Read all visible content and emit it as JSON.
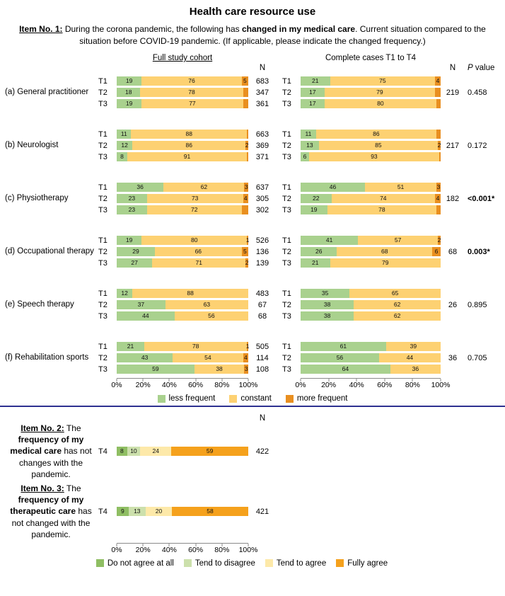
{
  "title": "Health care resource use",
  "item1": {
    "text": [
      {
        "t": "Item No. 1:",
        "b": true,
        "u": true
      },
      {
        "t": " During the corona pandemic, the following has ",
        "b": false,
        "u": false
      },
      {
        "t": "changed in my medical care",
        "b": true,
        "u": false
      },
      {
        "t": ". Current situation compared to the situation before COVID-19 pandemic. (If applicable, please indicate the changed frequency.)",
        "b": false,
        "u": false
      }
    ]
  },
  "headers": {
    "full": "Full study cohort",
    "complete": "Complete cases T1 to T4",
    "n": "N",
    "p_italic": "P",
    "p_rest": " value"
  },
  "chart_data": [
    {
      "type": "bar",
      "stacked": true,
      "orientation": "horizontal",
      "title": "Item No. 1 - change in medical care",
      "unit": "%",
      "xlim": [
        0,
        100
      ],
      "x_ticks": [
        "0%",
        "20%",
        "40%",
        "60%",
        "80%",
        "100%"
      ],
      "legend": [
        "less frequent",
        "constant",
        "more frequent"
      ],
      "legend_position": "bottom",
      "colors": [
        "#a9d18e",
        "#fdd172",
        "#e98f20"
      ],
      "panels": [
        "Full study cohort",
        "Complete cases T1 to T4"
      ],
      "groups": [
        {
          "label": "(a) General practitioner",
          "complete_n": "219",
          "p_value": "0.458",
          "p_bold": false,
          "rows": [
            {
              "t": "T1",
              "full_values": [
                19,
                76,
                5
              ],
              "full_labels": [
                "19",
                "76",
                "5"
              ],
              "full_n": "683",
              "comp_values": [
                21,
                75,
                4
              ],
              "comp_labels": [
                "21",
                "75",
                "4"
              ]
            },
            {
              "t": "T2",
              "full_values": [
                18,
                78,
                4
              ],
              "full_labels": [
                "18",
                "78",
                ""
              ],
              "full_n": "347",
              "comp_values": [
                17,
                79,
                4
              ],
              "comp_labels": [
                "17",
                "79",
                ""
              ]
            },
            {
              "t": "T3",
              "full_values": [
                19,
                77,
                4
              ],
              "full_labels": [
                "19",
                "77",
                ""
              ],
              "full_n": "361",
              "comp_values": [
                17,
                80,
                3
              ],
              "comp_labels": [
                "17",
                "80",
                ""
              ]
            }
          ]
        },
        {
          "label": "(b) Neurologist",
          "complete_n": "217",
          "p_value": "0.172",
          "p_bold": false,
          "rows": [
            {
              "t": "T1",
              "full_values": [
                11,
                88,
                1
              ],
              "full_labels": [
                "11",
                "88",
                ""
              ],
              "full_n": "663",
              "comp_values": [
                11,
                86,
                3
              ],
              "comp_labels": [
                "11",
                "86",
                ""
              ]
            },
            {
              "t": "T2",
              "full_values": [
                12,
                86,
                2
              ],
              "full_labels": [
                "12",
                "86",
                "2"
              ],
              "full_n": "369",
              "comp_values": [
                13,
                85,
                2
              ],
              "comp_labels": [
                "13",
                "85",
                "2"
              ]
            },
            {
              "t": "T3",
              "full_values": [
                8,
                91,
                1
              ],
              "full_labels": [
                "8",
                "91",
                ""
              ],
              "full_n": "371",
              "comp_values": [
                6,
                93,
                1
              ],
              "comp_labels": [
                "6",
                "93",
                ""
              ]
            }
          ]
        },
        {
          "label": "(c) Physiotherapy",
          "complete_n": "182",
          "p_value": "<0.001*",
          "p_bold": true,
          "rows": [
            {
              "t": "T1",
              "full_values": [
                36,
                62,
                3
              ],
              "full_labels": [
                "36",
                "62",
                "3"
              ],
              "full_n": "637",
              "comp_values": [
                46,
                51,
                3
              ],
              "comp_labels": [
                "46",
                "51",
                "3"
              ]
            },
            {
              "t": "T2",
              "full_values": [
                23,
                73,
                4
              ],
              "full_labels": [
                "23",
                "73",
                "4"
              ],
              "full_n": "305",
              "comp_values": [
                22,
                74,
                4
              ],
              "comp_labels": [
                "22",
                "74",
                "4"
              ]
            },
            {
              "t": "T3",
              "full_values": [
                23,
                72,
                5
              ],
              "full_labels": [
                "23",
                "72",
                ""
              ],
              "full_n": "302",
              "comp_values": [
                19,
                78,
                3
              ],
              "comp_labels": [
                "19",
                "78",
                ""
              ]
            }
          ]
        },
        {
          "label": "(d) Occupational therapy",
          "complete_n": "68",
          "p_value": "0.003*",
          "p_bold": true,
          "rows": [
            {
              "t": "T1",
              "full_values": [
                19,
                80,
                1
              ],
              "full_labels": [
                "19",
                "80",
                "1"
              ],
              "full_n": "526",
              "comp_values": [
                41,
                57,
                2
              ],
              "comp_labels": [
                "41",
                "57",
                "2"
              ]
            },
            {
              "t": "T2",
              "full_values": [
                29,
                66,
                5
              ],
              "full_labels": [
                "29",
                "66",
                "5"
              ],
              "full_n": "136",
              "comp_values": [
                26,
                68,
                6
              ],
              "comp_labels": [
                "26",
                "68",
                "6"
              ]
            },
            {
              "t": "T3",
              "full_values": [
                27,
                71,
                2
              ],
              "full_labels": [
                "27",
                "71",
                "2"
              ],
              "full_n": "139",
              "comp_values": [
                21,
                79
              ],
              "comp_labels": [
                "21",
                "79"
              ]
            }
          ]
        },
        {
          "label": "(e) Speech therapy",
          "complete_n": "26",
          "p_value": "0.895",
          "p_bold": false,
          "rows": [
            {
              "t": "T1",
              "full_values": [
                12,
                88
              ],
              "full_labels": [
                "12",
                "88"
              ],
              "full_n": "483",
              "comp_values": [
                35,
                65
              ],
              "comp_labels": [
                "35",
                "65"
              ]
            },
            {
              "t": "T2",
              "full_values": [
                37,
                63
              ],
              "full_labels": [
                "37",
                "63"
              ],
              "full_n": "67",
              "comp_values": [
                38,
                62
              ],
              "comp_labels": [
                "38",
                "62"
              ]
            },
            {
              "t": "T3",
              "full_values": [
                44,
                56
              ],
              "full_labels": [
                "44",
                "56"
              ],
              "full_n": "68",
              "comp_values": [
                38,
                62
              ],
              "comp_labels": [
                "38",
                "62"
              ]
            }
          ]
        },
        {
          "label": "(f) Rehabilitation sports",
          "complete_n": "36",
          "p_value": "0.705",
          "p_bold": false,
          "rows": [
            {
              "t": "T1",
              "full_values": [
                21,
                78,
                1
              ],
              "full_labels": [
                "21",
                "78",
                "1"
              ],
              "full_n": "505",
              "comp_values": [
                61,
                39
              ],
              "comp_labels": [
                "61",
                "39"
              ]
            },
            {
              "t": "T2",
              "full_values": [
                43,
                54,
                4
              ],
              "full_labels": [
                "43",
                "54",
                "4"
              ],
              "full_n": "114",
              "comp_values": [
                56,
                44
              ],
              "comp_labels": [
                "56",
                "44"
              ]
            },
            {
              "t": "T3",
              "full_values": [
                59,
                38,
                3
              ],
              "full_labels": [
                "59",
                "38",
                "3"
              ],
              "full_n": "108",
              "comp_values": [
                64,
                36
              ],
              "comp_labels": [
                "64",
                "36"
              ]
            }
          ]
        }
      ]
    },
    {
      "type": "bar",
      "stacked": true,
      "orientation": "horizontal",
      "title": "Items No. 2 and No. 3 - agreement",
      "unit": "%",
      "xlim": [
        0,
        100
      ],
      "x_ticks": [
        "0%",
        "20%",
        "40%",
        "60%",
        "80%",
        "100%"
      ],
      "legend": [
        "Do not agree at all",
        "Tend to disagree",
        "Tend to agree",
        "Fully agree"
      ],
      "legend_position": "bottom",
      "colors": [
        "#8fbe63",
        "#cce0ac",
        "#fde9a9",
        "#f5a11c"
      ],
      "n_header": "N",
      "rows": [
        {
          "t": "T4",
          "values": [
            8,
            10,
            24,
            59
          ],
          "labels": [
            "8",
            "10",
            "24",
            "59"
          ],
          "n": "422",
          "text": [
            {
              "t": "Item No. 2:",
              "b": true,
              "u": true
            },
            {
              "t": " The ",
              "b": false,
              "u": false
            },
            {
              "t": "frequency of my medical care",
              "b": true,
              "u": false
            },
            {
              "t": " has not changes with the pandemic.",
              "b": false,
              "u": false
            }
          ]
        },
        {
          "t": "T4",
          "values": [
            9,
            13,
            20,
            58
          ],
          "labels": [
            "9",
            "13",
            "20",
            "58"
          ],
          "n": "421",
          "text": [
            {
              "t": "Item No. 3:",
              "b": true,
              "u": true
            },
            {
              "t": " The ",
              "b": false,
              "u": false
            },
            {
              "t": "frequency of my therapeutic care",
              "b": true,
              "u": false
            },
            {
              "t": " has not changed with the pandemic.",
              "b": false,
              "u": false
            }
          ]
        }
      ]
    }
  ]
}
